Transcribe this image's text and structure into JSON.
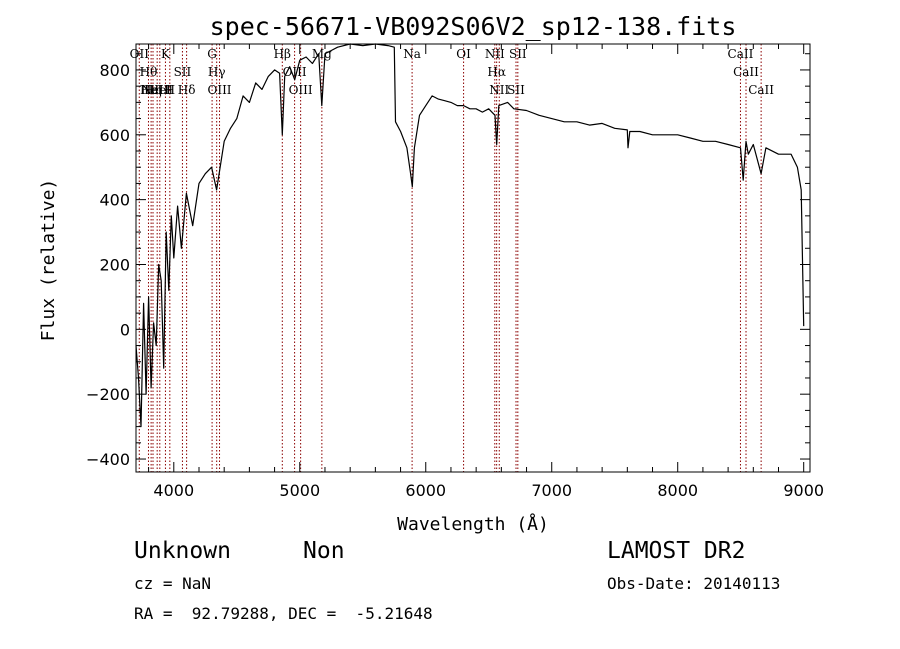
{
  "chart_data": {
    "type": "line",
    "title": "spec-56671-VB092S06V2_sp12-138.fits",
    "xlabel": "Wavelength (Å)",
    "ylabel": "Flux (relative)",
    "xlim": [
      3700,
      9050
    ],
    "ylim": [
      -440,
      880
    ],
    "x_ticks": [
      {
        "v": 4000,
        "label": "4000"
      },
      {
        "v": 5000,
        "label": "5000"
      },
      {
        "v": 6000,
        "label": "6000"
      },
      {
        "v": 7000,
        "label": "7000"
      },
      {
        "v": 8000,
        "label": "8000"
      },
      {
        "v": 9000,
        "label": "9000"
      }
    ],
    "y_ticks": [
      {
        "v": -400,
        "label": "−400"
      },
      {
        "v": -200,
        "label": "−200"
      },
      {
        "v": 0,
        "label": "0"
      },
      {
        "v": 200,
        "label": "200"
      },
      {
        "v": 400,
        "label": "400"
      },
      {
        "v": 600,
        "label": "600"
      },
      {
        "v": 800,
        "label": "800"
      }
    ],
    "series": [
      {
        "color": "#000000",
        "x": [
          3700,
          3720,
          3740,
          3760,
          3780,
          3800,
          3820,
          3840,
          3860,
          3880,
          3900,
          3920,
          3940,
          3960,
          3980,
          4000,
          4030,
          4060,
          4100,
          4150,
          4200,
          4250,
          4300,
          4340,
          4400,
          4450,
          4500,
          4550,
          4600,
          4650,
          4700,
          4750,
          4800,
          4840,
          4861,
          4880,
          4920,
          4960,
          5000,
          5050,
          5100,
          5150,
          5175,
          5200,
          5250,
          5300,
          5400,
          5500,
          5600,
          5700,
          5750,
          5760,
          5800,
          5850,
          5880,
          5893,
          5910,
          5950,
          6000,
          6050,
          6100,
          6150,
          6200,
          6250,
          6300,
          6350,
          6400,
          6450,
          6500,
          6550,
          6563,
          6580,
          6650,
          6700,
          6800,
          6900,
          7000,
          7100,
          7200,
          7300,
          7400,
          7500,
          7600,
          7605,
          7620,
          7700,
          7800,
          7900,
          8000,
          8100,
          8200,
          8300,
          8400,
          8498,
          8520,
          8542,
          8560,
          8600,
          8662,
          8700,
          8800,
          8900,
          8950,
          8980,
          9000
        ],
        "y": [
          -50,
          -150,
          -300,
          80,
          -200,
          100,
          -180,
          20,
          -50,
          200,
          150,
          -120,
          300,
          120,
          350,
          220,
          380,
          250,
          420,
          320,
          450,
          480,
          500,
          430,
          580,
          620,
          650,
          720,
          700,
          760,
          740,
          780,
          800,
          790,
          600,
          780,
          810,
          770,
          830,
          840,
          820,
          850,
          690,
          850,
          860,
          870,
          880,
          875,
          880,
          875,
          870,
          640,
          610,
          560,
          480,
          440,
          560,
          660,
          690,
          720,
          710,
          705,
          700,
          690,
          690,
          680,
          680,
          670,
          680,
          660,
          570,
          690,
          700,
          680,
          675,
          660,
          650,
          640,
          640,
          630,
          635,
          620,
          615,
          560,
          610,
          610,
          600,
          600,
          600,
          590,
          580,
          580,
          570,
          560,
          460,
          580,
          540,
          570,
          480,
          560,
          540,
          540,
          500,
          430,
          10
        ]
      }
    ],
    "lines": [
      {
        "x": 3726,
        "label": "OII"
      },
      {
        "x": 3799,
        "label": "Hθ"
      },
      {
        "x": 3820,
        "label": "HeI"
      },
      {
        "x": 3835,
        "label": "Hη"
      },
      {
        "x": 3868,
        "label": "NeIII"
      },
      {
        "x": 3889,
        "label": "HeI"
      },
      {
        "x": 3933.7,
        "label": "K"
      },
      {
        "x": 3968.5,
        "label": "H"
      },
      {
        "x": 4068.6,
        "label": "SII"
      },
      {
        "x": 4101.7,
        "label": "Hδ"
      },
      {
        "x": 4304,
        "label": "G"
      },
      {
        "x": 4340.5,
        "label": "Hγ"
      },
      {
        "x": 4363,
        "label": "OIII"
      },
      {
        "x": 4861.3,
        "label": "Hβ"
      },
      {
        "x": 4958.9,
        "label": "OIII"
      },
      {
        "x": 5006.8,
        "label": "OIII"
      },
      {
        "x": 5175.3,
        "label": "Mg"
      },
      {
        "x": 5891.6,
        "label": "Na"
      },
      {
        "x": 6300.3,
        "label": "OI"
      },
      {
        "x": 6548.1,
        "label": "NII"
      },
      {
        "x": 6562.8,
        "label": "Hα"
      },
      {
        "x": 6583.5,
        "label": "NII"
      },
      {
        "x": 6716.4,
        "label": "SII"
      },
      {
        "x": 6730.8,
        "label": "SII"
      },
      {
        "x": 8498,
        "label": "CaII"
      },
      {
        "x": 8542.1,
        "label": "CaII"
      },
      {
        "x": 8662.1,
        "label": "CaII"
      }
    ],
    "line_color": "#8b0000",
    "grid": false
  },
  "info": {
    "class": "Unknown",
    "subclass": "Non",
    "cz": "cz = NaN",
    "coords": "RA =  92.79288, DEC =  -5.21648",
    "survey": "LAMOST DR2",
    "obs_date": "Obs-Date: 20140113"
  }
}
